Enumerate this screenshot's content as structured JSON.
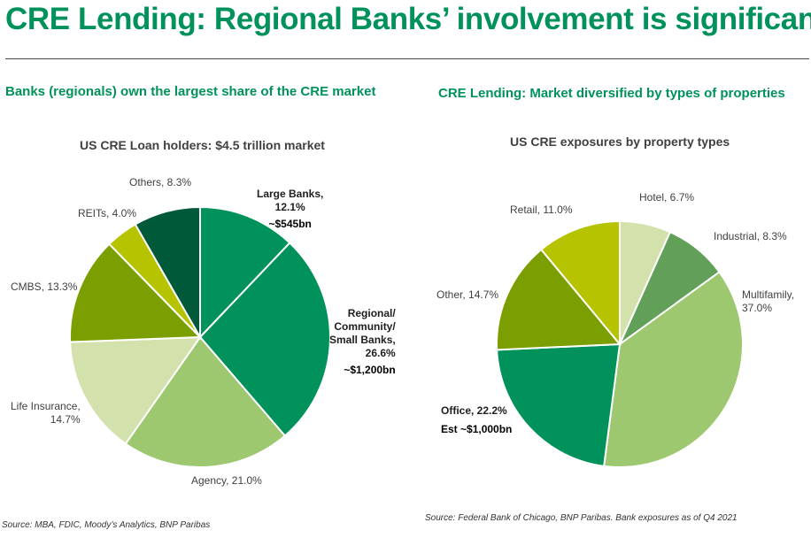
{
  "title": "CRE Lending: Regional Banks’ involvement is significant",
  "left": {
    "subheading": "Banks (regionals) own the largest share of the CRE market",
    "source": "Source: MBA, FDIC, Moody’s Analytics, BNP Paribas"
  },
  "right": {
    "subheading": "CRE Lending: Market diversified by types of properties",
    "source": "Source: Federal Bank of Chicago, BNP Paribas. Bank exposures as of Q4 2021"
  },
  "chart_data": [
    {
      "type": "pie",
      "title": "US CRE Loan holders: $4.5 trillion market",
      "start_angle_deg": 0,
      "direction": "clockwise",
      "slices": [
        {
          "label": "Large Banks,\n12.1%",
          "value": 12.1,
          "color": "#00925A",
          "bold": true,
          "note": "~$545bn"
        },
        {
          "label": "Regional/\nCommunity/\nSmall Banks,\n26.6%",
          "value": 26.6,
          "color": "#00925A",
          "bold": true,
          "note": "~$1,200bn"
        },
        {
          "label": "Agency, 21.0%",
          "value": 21.0,
          "color": "#9DC870",
          "bold": false,
          "note": ""
        },
        {
          "label": "Life Insurance,\n14.7%",
          "value": 14.7,
          "color": "#D3E2AD",
          "bold": false,
          "note": ""
        },
        {
          "label": "CMBS, 13.3%",
          "value": 13.3,
          "color": "#7B9E00",
          "bold": false,
          "note": ""
        },
        {
          "label": "REITs, 4.0%",
          "value": 4.0,
          "color": "#B5C300",
          "bold": false,
          "note": ""
        },
        {
          "label": "Others, 8.3%",
          "value": 8.3,
          "color": "#005A3A",
          "bold": false,
          "note": ""
        }
      ]
    },
    {
      "type": "pie",
      "title": "US CRE exposures by property types",
      "start_angle_deg": 0,
      "direction": "clockwise",
      "slices": [
        {
          "label": "Hotel, 6.7%",
          "value": 6.7,
          "color": "#D3E2AD",
          "bold": false,
          "note": ""
        },
        {
          "label": "Industrial, 8.3%",
          "value": 8.3,
          "color": "#62A05A",
          "bold": false,
          "note": ""
        },
        {
          "label": "Multifamily,\n37.0%",
          "value": 37.0,
          "color": "#9DC870",
          "bold": false,
          "note": ""
        },
        {
          "label": "Office, 22.2%",
          "value": 22.2,
          "color": "#00925A",
          "bold": true,
          "note": "Est ~$1,000bn"
        },
        {
          "label": "Other, 14.7%",
          "value": 14.7,
          "color": "#7B9E00",
          "bold": false,
          "note": ""
        },
        {
          "label": "Retail, 11.0%",
          "value": 11.0,
          "color": "#B5C300",
          "bold": false,
          "note": ""
        }
      ]
    }
  ]
}
